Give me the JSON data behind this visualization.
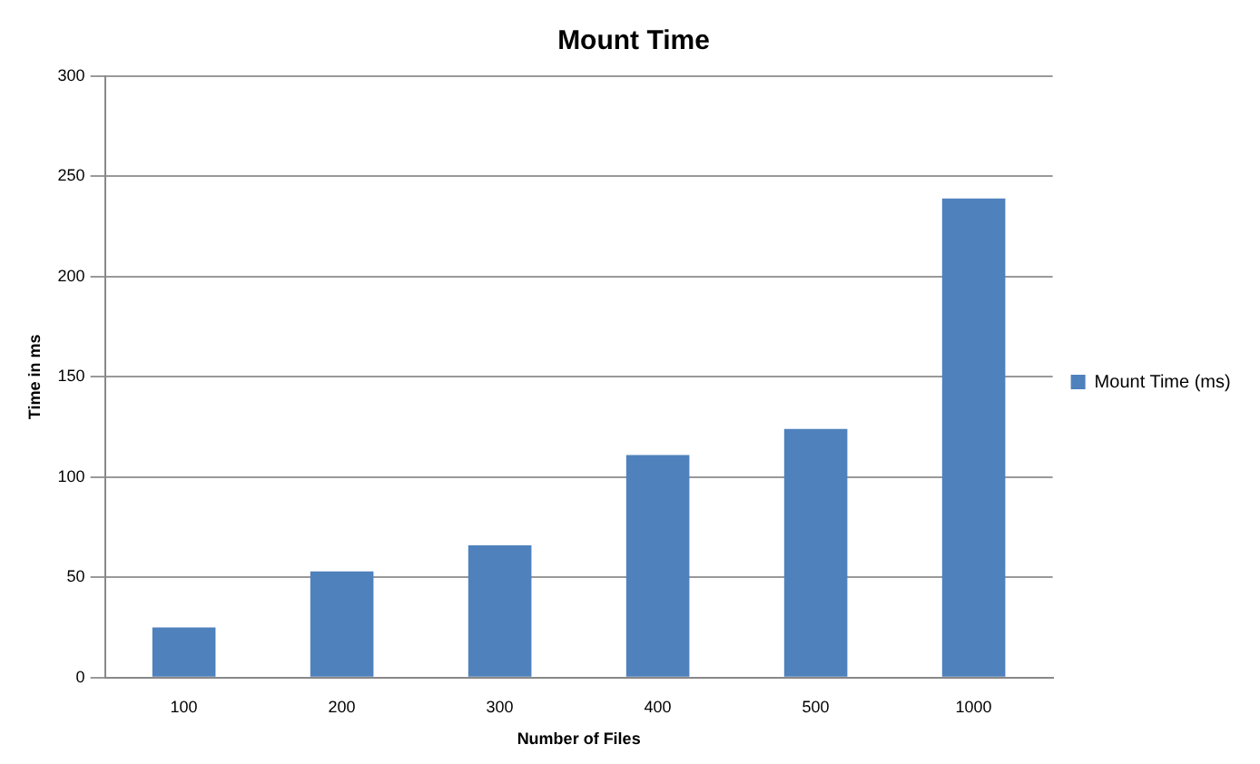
{
  "chart_data": {
    "type": "bar",
    "title": "Mount Time",
    "xlabel": "Number of Files",
    "ylabel": "Time in ms",
    "categories": [
      "100",
      "200",
      "300",
      "400",
      "500",
      "1000"
    ],
    "series": [
      {
        "name": "Mount Time (ms)",
        "color": "#4f81bd",
        "values": [
          25,
          53,
          66,
          111,
          124,
          239
        ]
      }
    ],
    "ylim": [
      0,
      300
    ],
    "yticks": [
      0,
      50,
      100,
      150,
      200,
      250,
      300
    ],
    "grid": "y",
    "legend": "right"
  }
}
